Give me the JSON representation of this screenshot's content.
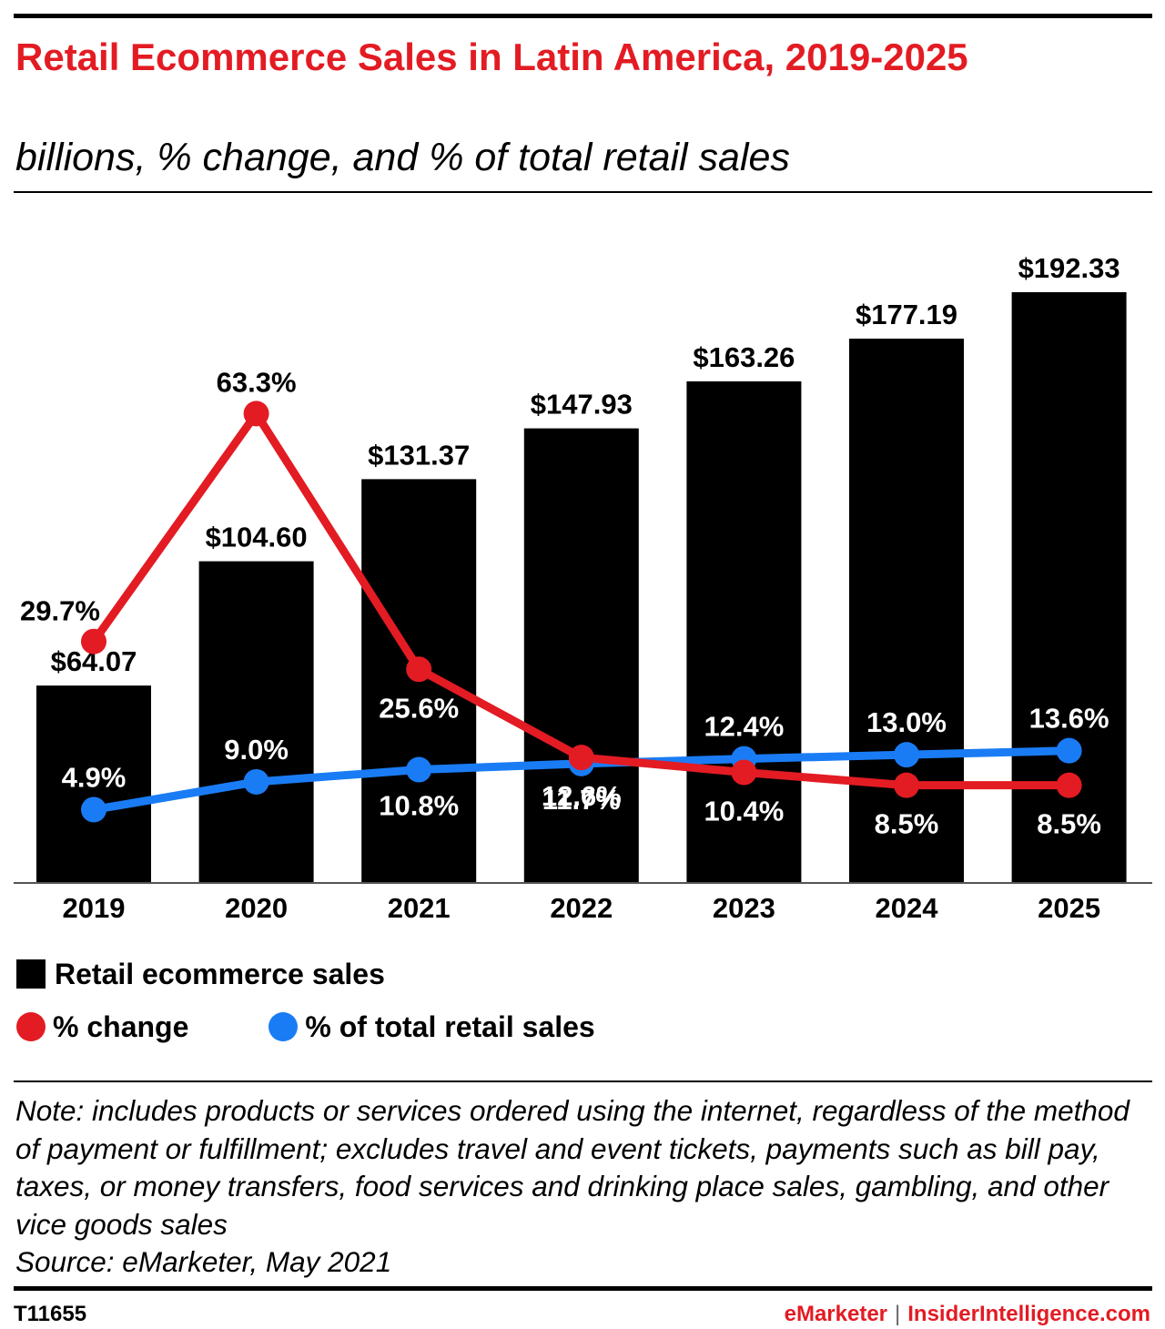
{
  "title": "Retail Ecommerce Sales in Latin America, 2019-2025",
  "subtitle": "billions, % change, and % of total retail sales",
  "chart_data": {
    "type": "bar",
    "categories": [
      "2019",
      "2020",
      "2021",
      "2022",
      "2023",
      "2024",
      "2025"
    ],
    "series": [
      {
        "name": "Retail ecommerce sales",
        "type": "bar",
        "color": "#000000",
        "values": [
          64.07,
          104.6,
          131.37,
          147.93,
          163.26,
          177.19,
          192.33
        ],
        "labels": [
          "$64.07",
          "$104.60",
          "$131.37",
          "$147.93",
          "$163.26",
          "$177.19",
          "$192.33"
        ]
      },
      {
        "name": "% change",
        "type": "line",
        "color": "#e31b23",
        "values": [
          29.7,
          63.3,
          25.6,
          12.6,
          10.4,
          8.5,
          8.5
        ],
        "labels": [
          "29.7%",
          "63.3%",
          "25.6%",
          "12.6%",
          "10.4%",
          "8.5%",
          "8.5%"
        ]
      },
      {
        "name": "% of total retail sales",
        "type": "line",
        "color": "#1a7cf5",
        "values": [
          4.9,
          9.0,
          10.8,
          11.7,
          12.4,
          13.0,
          13.6
        ],
        "labels": [
          "4.9%",
          "9.0%",
          "10.8%",
          "11.7%",
          "12.4%",
          "13.0%",
          "13.6%"
        ]
      }
    ],
    "legend_position": "bottom-left",
    "grid": false
  },
  "legend": {
    "bar_label": "Retail ecommerce sales",
    "change_label": "% change",
    "share_label": "% of total retail sales"
  },
  "note": "Note: includes products or services ordered using the internet, regardless of the method of payment or fulfillment; excludes travel and event tickets, payments such as bill pay, taxes, or money transfers, food services and drinking place sales, gambling, and other vice goods sales\nSource: eMarketer, May 2021",
  "footer": {
    "id": "T11655",
    "brand1": "eMarketer",
    "separator": "|",
    "brand2": "InsiderIntelligence.com"
  }
}
